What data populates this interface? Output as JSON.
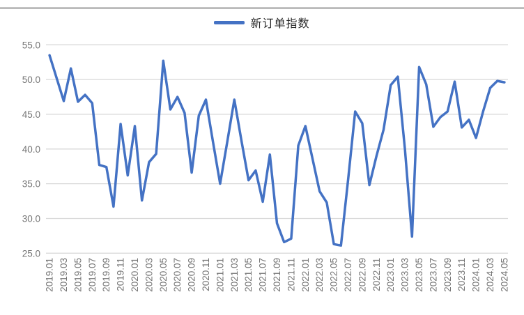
{
  "legend": {
    "label": "新订单指数"
  },
  "colors": {
    "series": "#4472C4",
    "gridline": "#D9D9D9",
    "tick_text": "#757575",
    "legend_text": "#262626"
  },
  "chart_data": {
    "type": "line",
    "title": "",
    "xlabel": "",
    "ylabel": "",
    "ylim": [
      25.0,
      55.0
    ],
    "grid": "horizontal",
    "legend_position": "top-center",
    "y_tick_labels": [
      "55.0",
      "50.0",
      "45.0",
      "40.0",
      "35.0",
      "30.0",
      "25.0"
    ],
    "y_ticks": [
      55,
      50,
      45,
      40,
      35,
      30,
      25
    ],
    "x": [
      "2019.01",
      "2019.02",
      "2019.03",
      "2019.04",
      "2019.05",
      "2019.06",
      "2019.07",
      "2019.08",
      "2019.09",
      "2019.10",
      "2019.11",
      "2019.12",
      "2020.01",
      "2020.02",
      "2020.03",
      "2020.04",
      "2020.05",
      "2020.06",
      "2020.07",
      "2020.08",
      "2020.09",
      "2020.10",
      "2020.11",
      "2020.12",
      "2021.01",
      "2021.02",
      "2021.03",
      "2021.04",
      "2021.05",
      "2021.06",
      "2021.07",
      "2021.08",
      "2021.09",
      "2021.10",
      "2021.11",
      "2021.12",
      "2022.01",
      "2022.02",
      "2022.03",
      "2022.04",
      "2022.05",
      "2022.06",
      "2022.07",
      "2022.08",
      "2022.09",
      "2022.10",
      "2022.11",
      "2022.12",
      "2023.01",
      "2023.02",
      "2023.03",
      "2023.04",
      "2023.05",
      "2023.06",
      "2023.07",
      "2023.08",
      "2023.09",
      "2023.10",
      "2023.11",
      "2023.12",
      "2024.01",
      "2024.02",
      "2024.03",
      "2024.04",
      "2024.05"
    ],
    "x_tick_labels": [
      "2019.01",
      "2019.03",
      "2019.05",
      "2019.07",
      "2019.09",
      "2019.11",
      "2020.01",
      "2020.03",
      "2020.05",
      "2020.07",
      "2020.09",
      "2020.11",
      "2021.01",
      "2021.03",
      "2021.05",
      "2021.07",
      "2021.09",
      "2021.11",
      "2022.01",
      "2022.03",
      "2022.05",
      "2022.07",
      "2022.09",
      "2022.11",
      "2023.01",
      "2023.03",
      "2023.05",
      "2023.07",
      "2023.09",
      "2023.11",
      "2024.01",
      "2024.03",
      "2024.05"
    ],
    "x_tick_step": 2,
    "series": [
      {
        "name": "新订单指数",
        "values": [
          53.5,
          50.2,
          46.9,
          51.6,
          46.8,
          47.8,
          46.6,
          37.7,
          37.4,
          31.7,
          43.6,
          36.2,
          43.3,
          32.6,
          38.1,
          39.3,
          52.7,
          45.7,
          47.5,
          45.2,
          36.6,
          44.8,
          47.1,
          41.0,
          35.0,
          41.0,
          47.1,
          41.2,
          35.5,
          36.9,
          32.4,
          39.2,
          29.3,
          26.6,
          27.1,
          40.5,
          43.3,
          38.6,
          33.9,
          32.3,
          26.3,
          26.1,
          35.5,
          45.4,
          43.7,
          34.8,
          39.0,
          42.8,
          49.2,
          50.4,
          40.0,
          27.4,
          51.8,
          49.3,
          43.2,
          44.6,
          45.4,
          49.7,
          43.1,
          44.2,
          41.6,
          45.4,
          48.8,
          49.8,
          49.6
        ]
      }
    ]
  }
}
